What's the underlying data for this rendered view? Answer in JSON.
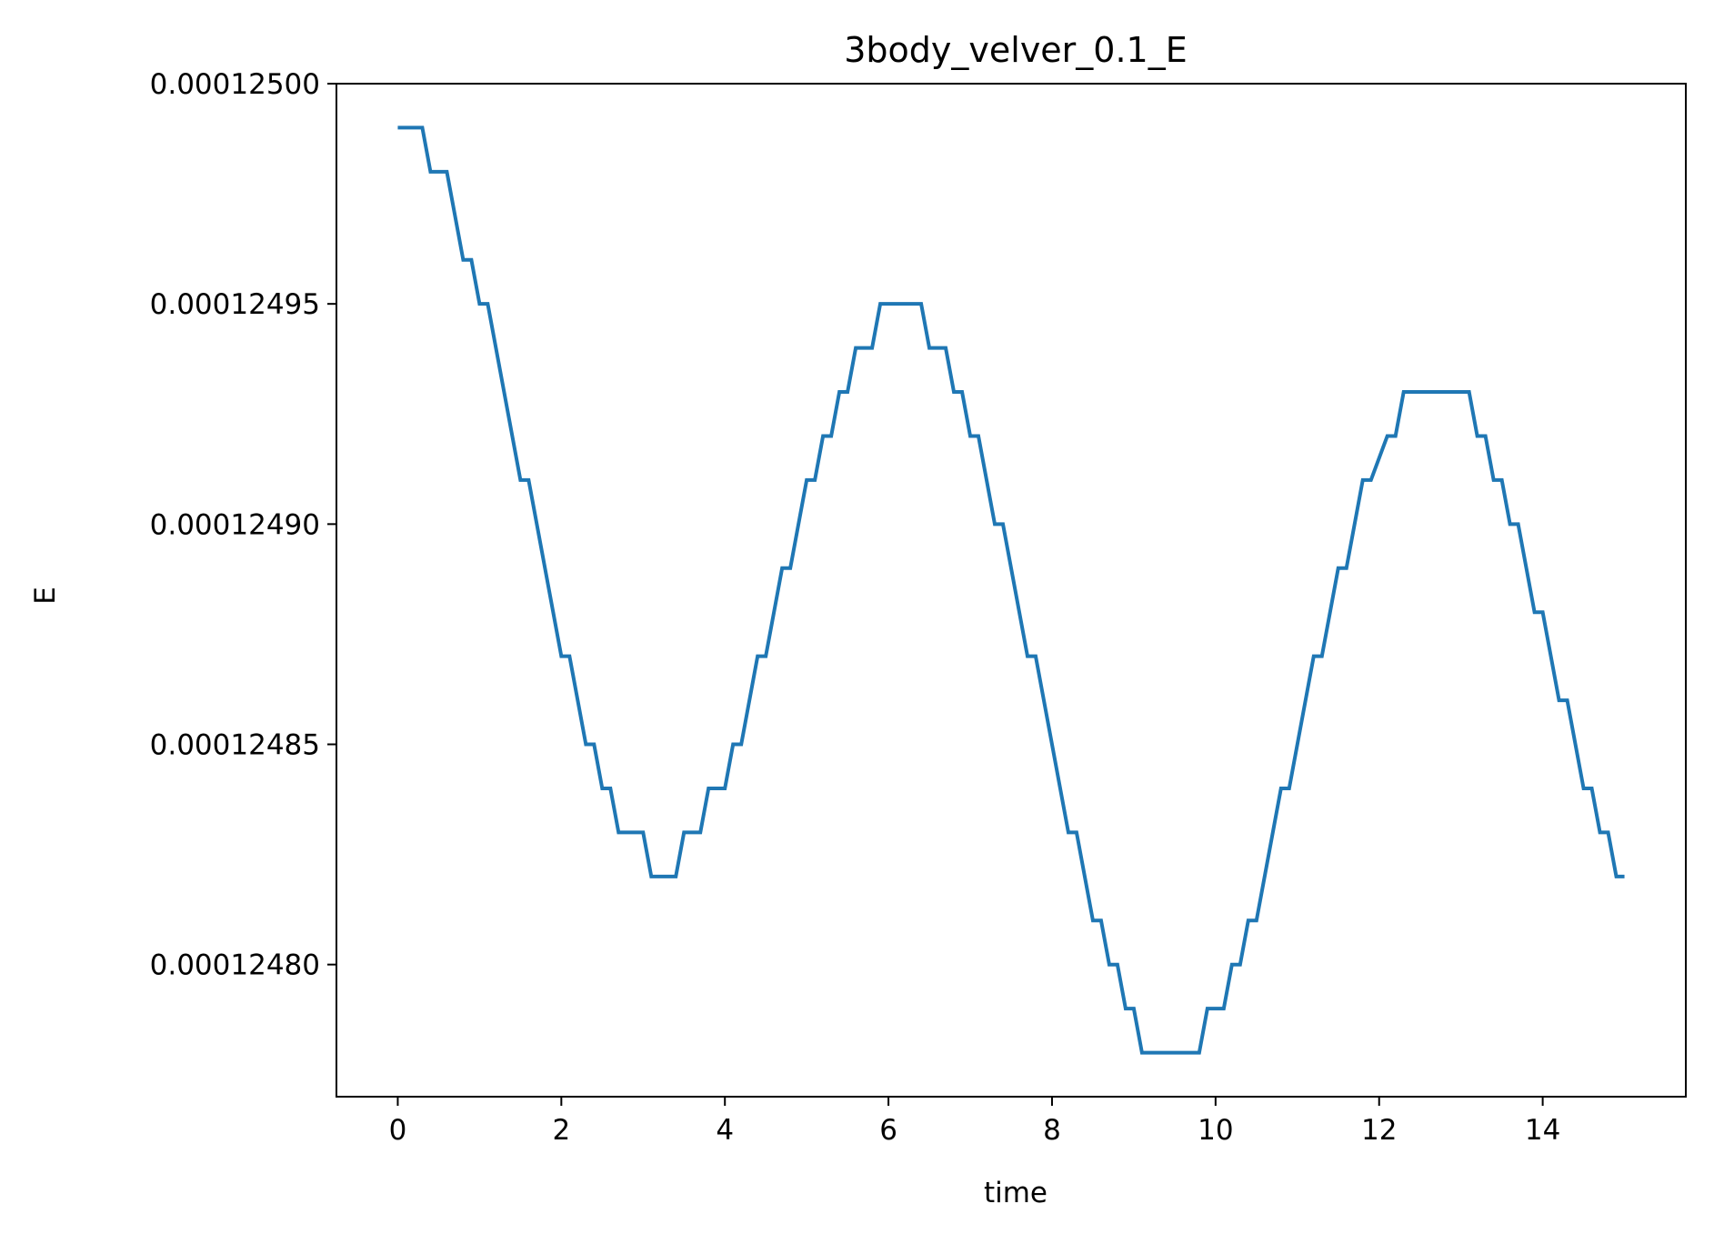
{
  "chart_data": {
    "type": "line",
    "title": "3body_velver_0.1_E",
    "xlabel": "time",
    "ylabel": "E",
    "xlim": [
      -0.75,
      15.75
    ],
    "ylim": [
      0.00012477,
      0.000125
    ],
    "x_ticks": [
      0,
      2,
      4,
      6,
      8,
      10,
      12,
      14
    ],
    "x_tick_labels": [
      "0",
      "2",
      "4",
      "6",
      "8",
      "10",
      "12",
      "14"
    ],
    "y_ticks": [
      0.0001248,
      0.00012485,
      0.0001249,
      0.00012495,
      0.000125
    ],
    "y_tick_labels": [
      "0.00012480",
      "0.00012485",
      "0.00012490",
      "0.00012495",
      "0.00012500"
    ],
    "grid": false,
    "colors": {
      "series": "#1f77b4"
    },
    "series": [
      {
        "x": [
          0.0,
          0.3,
          0.4,
          0.6,
          0.8,
          0.9,
          1.0,
          1.1,
          1.5,
          1.6,
          2.0,
          2.1,
          2.3,
          2.4,
          2.5,
          2.6,
          2.7,
          3.0,
          3.1,
          3.4,
          3.5,
          3.7,
          3.8,
          4.0,
          4.1,
          4.2,
          4.4,
          4.5,
          4.7,
          4.8,
          5.0,
          5.1,
          5.2,
          5.3,
          5.4,
          5.5,
          5.6,
          5.8,
          5.9,
          6.4,
          6.5,
          6.7,
          6.8,
          6.9,
          7.0,
          7.1,
          7.3,
          7.4,
          7.7,
          7.8,
          8.2,
          8.3,
          8.5,
          8.6,
          8.7,
          8.8,
          8.9,
          9.0,
          9.1,
          9.8,
          9.9,
          10.1,
          10.2,
          10.3,
          10.4,
          10.5,
          10.8,
          10.9,
          11.2,
          11.3,
          11.5,
          11.6,
          11.8,
          11.9,
          12.1,
          12.2,
          12.3,
          13.1,
          13.2,
          13.3,
          13.4,
          13.5,
          13.6,
          13.7,
          13.9,
          14.0,
          14.2,
          14.3,
          14.5,
          14.6,
          14.7,
          14.8,
          14.9,
          15.0
        ],
        "y": [
          0.00012499,
          0.00012499,
          0.00012498,
          0.00012498,
          0.00012496,
          0.00012496,
          0.00012495,
          0.00012495,
          0.00012491,
          0.00012491,
          0.00012487,
          0.00012487,
          0.00012485,
          0.00012485,
          0.00012484,
          0.00012484,
          0.00012483,
          0.00012483,
          0.00012482,
          0.00012482,
          0.00012483,
          0.00012483,
          0.00012484,
          0.00012484,
          0.00012485,
          0.00012485,
          0.00012487,
          0.00012487,
          0.00012489,
          0.00012489,
          0.00012491,
          0.00012491,
          0.00012492,
          0.00012492,
          0.00012493,
          0.00012493,
          0.00012494,
          0.00012494,
          0.00012495,
          0.00012495,
          0.00012494,
          0.00012494,
          0.00012493,
          0.00012493,
          0.00012492,
          0.00012492,
          0.0001249,
          0.0001249,
          0.00012487,
          0.00012487,
          0.00012483,
          0.00012483,
          0.00012481,
          0.00012481,
          0.0001248,
          0.0001248,
          0.00012479,
          0.00012479,
          0.00012478,
          0.00012478,
          0.00012479,
          0.00012479,
          0.0001248,
          0.0001248,
          0.00012481,
          0.00012481,
          0.00012484,
          0.00012484,
          0.00012487,
          0.00012487,
          0.00012489,
          0.00012489,
          0.00012491,
          0.00012491,
          0.00012492,
          0.00012492,
          0.00012493,
          0.00012493,
          0.00012492,
          0.00012492,
          0.00012491,
          0.00012491,
          0.0001249,
          0.0001249,
          0.00012488,
          0.00012488,
          0.00012486,
          0.00012486,
          0.00012484,
          0.00012484,
          0.00012483,
          0.00012483,
          0.00012482,
          0.00012482
        ]
      }
    ]
  }
}
